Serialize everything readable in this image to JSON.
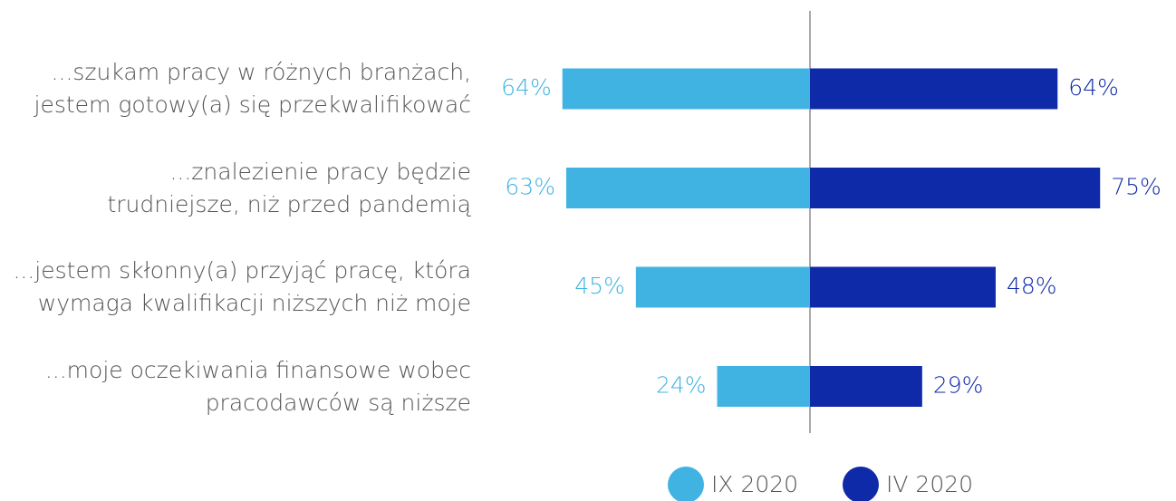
{
  "chart_data": {
    "type": "bar",
    "categories": [
      "...szukam pracy w różnych branżach,\njestem gotowy(a) się przekwalifikować",
      "...znalezienie pracy będzie\ntrudniejsze, niż przed pandemią",
      "...jestem skłonny(a) przyjąć pracę, która\nwymaga kwalifikacji niższych niż moje",
      "...moje oczekiwania finansowe wobec\npracodawców są niższe"
    ],
    "series": [
      {
        "name": "IX 2020",
        "color": "#41b3e3",
        "values": [
          64,
          63,
          45,
          24
        ],
        "value_labels": [
          "64%",
          "63%",
          "45%",
          "24%"
        ]
      },
      {
        "name": "IV 2020",
        "color": "#0f2aa8",
        "values": [
          64,
          75,
          48,
          29
        ],
        "value_labels": [
          "64%",
          "75%",
          "48%",
          "29%"
        ]
      }
    ]
  }
}
